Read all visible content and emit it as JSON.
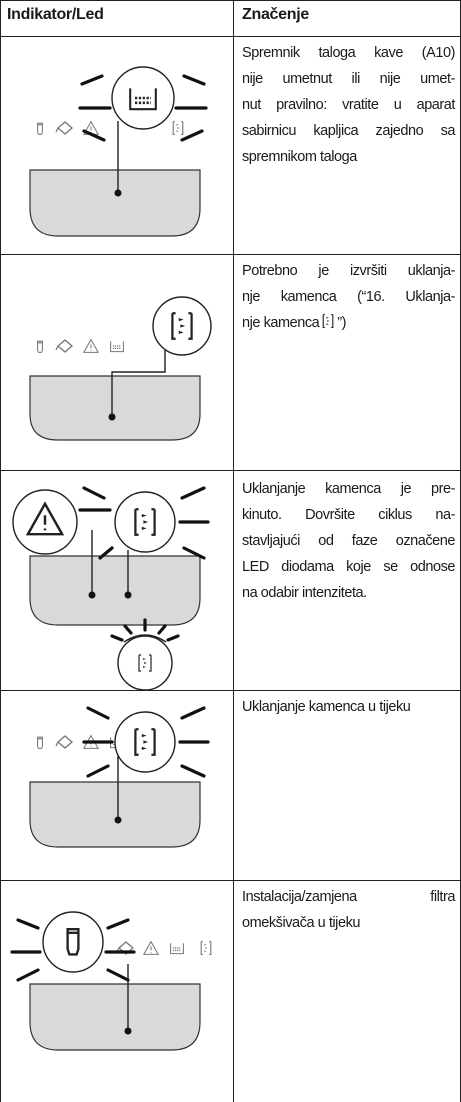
{
  "table": {
    "header": [
      "Indikator/Led",
      "Značenje"
    ],
    "rows": [
      {
        "lines": [
          "Spremnik taloga kave (A10)",
          "nije umetnut ili nije umet-",
          "nut pravilno: vratite u aparat",
          "sabirnicu kapljica zajedno sa",
          "spremnikom taloga"
        ]
      },
      {
        "lines": [
          "Potrebno je izvršiti uklanja-",
          "nje kamenca (“16. Uklanja-",
          "nje kamenca"
        ],
        "after_icon": "”)"
      },
      {
        "lines": [
          "Uklanjanje kamenca je pre-",
          "kinuto. Dovršite ciklus na-",
          "stavljajući od faze označene",
          "LED diodama koje se odnose",
          "na odabir intenziteta."
        ]
      },
      {
        "lines": [
          "Uklanjanje kamenca u tijeku"
        ]
      },
      {
        "lines": [
          "Instalacija/zamjena filtra",
          "omekšivača u tijeku"
        ]
      }
    ]
  }
}
